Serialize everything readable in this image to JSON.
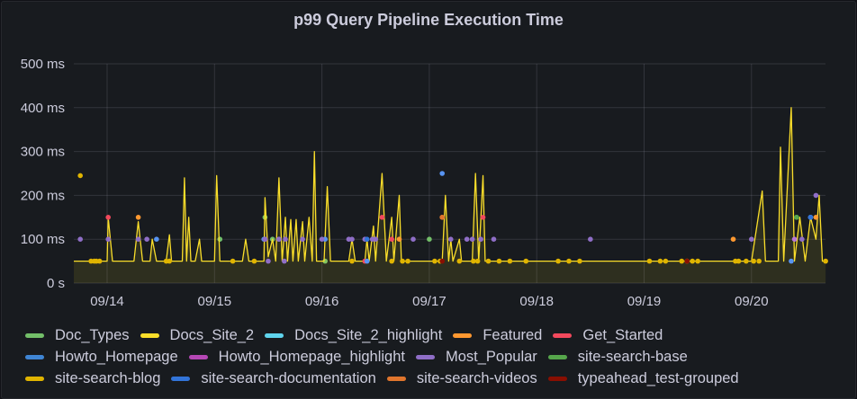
{
  "panel": {
    "title": "p99 Query Pipeline Execution Time"
  },
  "chart_data": {
    "type": "line",
    "title": "p99 Query Pipeline Execution Time",
    "xlabel": "",
    "ylabel": "",
    "ylim": [
      0,
      500
    ],
    "y_unit": "ms",
    "y_ticks": [
      "0 s",
      "100 ms",
      "200 ms",
      "300 ms",
      "400 ms",
      "500 ms"
    ],
    "y_tick_values": [
      0,
      100,
      200,
      300,
      400,
      500
    ],
    "x_ticks": [
      "09/14",
      "09/15",
      "09/16",
      "09/17",
      "09/18",
      "09/19",
      "09/20"
    ],
    "x_range_days": [
      -0.31,
      6.69
    ],
    "grid": true,
    "legend_position": "bottom",
    "series": [
      {
        "name": "Doc_Types",
        "color": "#73bf69",
        "points": [
          [
            1.05,
            100
          ],
          [
            1.47,
            150
          ],
          [
            1.54,
            100
          ],
          [
            2.03,
            50
          ],
          [
            3.0,
            100
          ],
          [
            6.42,
            150
          ]
        ]
      },
      {
        "name": "Docs_Site_2",
        "color": "#fade2a",
        "line": true,
        "points": [
          [
            -0.31,
            50
          ],
          [
            -0.2,
            50
          ],
          [
            -0.05,
            50
          ],
          [
            0.0,
            50
          ],
          [
            0.01,
            150
          ],
          [
            0.05,
            50
          ],
          [
            0.25,
            50
          ],
          [
            0.29,
            140
          ],
          [
            0.33,
            50
          ],
          [
            0.4,
            50
          ],
          [
            0.42,
            100
          ],
          [
            0.46,
            50
          ],
          [
            0.55,
            50
          ],
          [
            0.58,
            110
          ],
          [
            0.6,
            50
          ],
          [
            0.7,
            50
          ],
          [
            0.72,
            240
          ],
          [
            0.74,
            50
          ],
          [
            0.76,
            150
          ],
          [
            0.78,
            50
          ],
          [
            0.82,
            50
          ],
          [
            0.86,
            100
          ],
          [
            0.88,
            50
          ],
          [
            1.0,
            50
          ],
          [
            1.02,
            245
          ],
          [
            1.05,
            50
          ],
          [
            1.14,
            50
          ],
          [
            1.2,
            50
          ],
          [
            1.26,
            50
          ],
          [
            1.29,
            100
          ],
          [
            1.32,
            50
          ],
          [
            1.46,
            50
          ],
          [
            1.47,
            195
          ],
          [
            1.5,
            60
          ],
          [
            1.54,
            100
          ],
          [
            1.57,
            50
          ],
          [
            1.6,
            240
          ],
          [
            1.63,
            50
          ],
          [
            1.66,
            150
          ],
          [
            1.68,
            50
          ],
          [
            1.71,
            145
          ],
          [
            1.73,
            50
          ],
          [
            1.76,
            145
          ],
          [
            1.78,
            50
          ],
          [
            1.82,
            140
          ],
          [
            1.84,
            50
          ],
          [
            1.88,
            150
          ],
          [
            1.91,
            50
          ],
          [
            1.93,
            300
          ],
          [
            1.95,
            50
          ],
          [
            2.02,
            50
          ],
          [
            2.05,
            220
          ],
          [
            2.08,
            50
          ],
          [
            2.25,
            50
          ],
          [
            2.28,
            100
          ],
          [
            2.31,
            50
          ],
          [
            2.4,
            50
          ],
          [
            2.42,
            100
          ],
          [
            2.44,
            50
          ],
          [
            2.48,
            130
          ],
          [
            2.5,
            50
          ],
          [
            2.56,
            250
          ],
          [
            2.6,
            50
          ],
          [
            2.65,
            150
          ],
          [
            2.67,
            50
          ],
          [
            2.72,
            200
          ],
          [
            2.74,
            50
          ],
          [
            2.9,
            50
          ],
          [
            3.12,
            50
          ],
          [
            3.15,
            200
          ],
          [
            3.18,
            50
          ],
          [
            3.2,
            100
          ],
          [
            3.22,
            50
          ],
          [
            3.28,
            100
          ],
          [
            3.3,
            50
          ],
          [
            3.4,
            50
          ],
          [
            3.43,
            250
          ],
          [
            3.46,
            50
          ],
          [
            3.5,
            245
          ],
          [
            3.52,
            50
          ],
          [
            3.6,
            50
          ],
          [
            3.75,
            50
          ],
          [
            3.9,
            50
          ],
          [
            4.5,
            50
          ],
          [
            5.2,
            50
          ],
          [
            5.5,
            50
          ],
          [
            6.0,
            50
          ],
          [
            6.1,
            210
          ],
          [
            6.13,
            50
          ],
          [
            6.25,
            50
          ],
          [
            6.27,
            310
          ],
          [
            6.3,
            50
          ],
          [
            6.37,
            400
          ],
          [
            6.4,
            50
          ],
          [
            6.45,
            150
          ],
          [
            6.5,
            50
          ],
          [
            6.55,
            150
          ],
          [
            6.6,
            100
          ],
          [
            6.63,
            200
          ],
          [
            6.66,
            50
          ],
          [
            6.69,
            50
          ]
        ]
      },
      {
        "name": "Docs_Site_2_highlight",
        "color": "#8ab8ff",
        "points": [
          [
            6.55,
            150
          ]
        ]
      },
      {
        "name": "Featured",
        "color": "#ff9830",
        "points": [
          [
            0.29,
            150
          ],
          [
            2.72,
            100
          ],
          [
            3.12,
            150
          ],
          [
            5.83,
            100
          ],
          [
            6.6,
            150
          ]
        ]
      },
      {
        "name": "Get_Started",
        "color": "#f2495c",
        "points": [
          [
            0.01,
            150
          ],
          [
            1.47,
            100
          ],
          [
            2.4,
            50
          ],
          [
            2.56,
            150
          ],
          [
            2.65,
            100
          ],
          [
            3.5,
            150
          ]
        ]
      },
      {
        "name": "Howto_Homepage",
        "color": "#5794f2",
        "points": [
          [
            0.46,
            100
          ],
          [
            1.46,
            100
          ],
          [
            1.6,
            100
          ],
          [
            2.03,
            100
          ],
          [
            2.42,
            50
          ],
          [
            3.12,
            250
          ],
          [
            6.37,
            50
          ],
          [
            6.55,
            150
          ]
        ]
      },
      {
        "name": "Howto_Homepage_highlight",
        "color": "#b877d9",
        "points": [
          [
            6.4,
            100
          ]
        ]
      },
      {
        "name": "Most_Popular",
        "color": "#8f6ec7",
        "points": [
          [
            -0.25,
            100
          ],
          [
            0.01,
            100
          ],
          [
            0.29,
            100
          ],
          [
            0.37,
            100
          ],
          [
            1.47,
            100
          ],
          [
            1.5,
            50
          ],
          [
            1.6,
            100
          ],
          [
            1.65,
            50
          ],
          [
            1.66,
            100
          ],
          [
            1.82,
            100
          ],
          [
            2.0,
            100
          ],
          [
            2.25,
            100
          ],
          [
            2.28,
            100
          ],
          [
            2.4,
            100
          ],
          [
            2.47,
            100
          ],
          [
            2.5,
            100
          ],
          [
            2.85,
            100
          ],
          [
            3.2,
            100
          ],
          [
            3.35,
            100
          ],
          [
            3.4,
            100
          ],
          [
            3.48,
            100
          ],
          [
            3.6,
            100
          ],
          [
            4.5,
            100
          ],
          [
            6.0,
            100
          ],
          [
            6.47,
            100
          ],
          [
            6.6,
            200
          ]
        ]
      },
      {
        "name": "site-search-base",
        "color": "#56a64b",
        "points": [
          [
            6.42,
            150
          ]
        ]
      },
      {
        "name": "site-search-blog",
        "color": "#e0b400",
        "points": [
          [
            -0.25,
            245
          ],
          [
            -0.15,
            50
          ],
          [
            -0.12,
            50
          ],
          [
            -0.1,
            50
          ],
          [
            -0.07,
            50
          ],
          [
            0.55,
            50
          ],
          [
            0.58,
            50
          ],
          [
            1.17,
            50
          ],
          [
            1.37,
            50
          ],
          [
            2.28,
            50
          ],
          [
            2.65,
            50
          ],
          [
            2.75,
            50
          ],
          [
            2.8,
            50
          ],
          [
            3.05,
            50
          ],
          [
            3.1,
            50
          ],
          [
            3.28,
            50
          ],
          [
            3.41,
            50
          ],
          [
            3.45,
            50
          ],
          [
            3.55,
            50
          ],
          [
            3.65,
            50
          ],
          [
            3.75,
            50
          ],
          [
            3.9,
            50
          ],
          [
            4.2,
            50
          ],
          [
            4.3,
            50
          ],
          [
            4.4,
            50
          ],
          [
            5.05,
            50
          ],
          [
            5.15,
            50
          ],
          [
            5.2,
            50
          ],
          [
            5.35,
            50
          ],
          [
            5.4,
            50
          ],
          [
            5.45,
            50
          ],
          [
            5.5,
            50
          ],
          [
            5.85,
            50
          ],
          [
            5.88,
            50
          ],
          [
            5.95,
            50
          ],
          [
            6.02,
            50
          ],
          [
            6.07,
            50
          ],
          [
            6.69,
            50
          ]
        ]
      },
      {
        "name": "site-search-documentation",
        "color": "#3274d9",
        "points": [
          [
            2.42,
            100
          ],
          [
            6.55,
            150
          ]
        ]
      },
      {
        "name": "site-search-videos",
        "color": "#e0752d",
        "points": [
          [
            3.12,
            150
          ]
        ]
      },
      {
        "name": "typeahead_test-grouped",
        "color": "#890f02",
        "points": [
          [
            3.12,
            50
          ],
          [
            5.4,
            50
          ]
        ]
      }
    ]
  },
  "legend": {
    "rows": [
      [
        {
          "label": "Doc_Types",
          "color": "#73bf69"
        },
        {
          "label": "Docs_Site_2",
          "color": "#fade2a"
        },
        {
          "label": "Docs_Site_2_highlight",
          "color": "#5fd4ed"
        },
        {
          "label": "Featured",
          "color": "#ff9830"
        },
        {
          "label": "Get_Started",
          "color": "#f2495c"
        }
      ],
      [
        {
          "label": "Howto_Homepage",
          "color": "#3f85d4"
        },
        {
          "label": "Howto_Homepage_highlight",
          "color": "#b547b5"
        },
        {
          "label": "Most_Popular",
          "color": "#8f6ec7"
        },
        {
          "label": "site-search-base",
          "color": "#56a64b"
        }
      ],
      [
        {
          "label": "site-search-blog",
          "color": "#e0b400"
        },
        {
          "label": "site-search-documentation",
          "color": "#3274d9"
        },
        {
          "label": "site-search-videos",
          "color": "#e0752d"
        },
        {
          "label": "typeahead_test-grouped",
          "color": "#890f02"
        }
      ]
    ]
  }
}
